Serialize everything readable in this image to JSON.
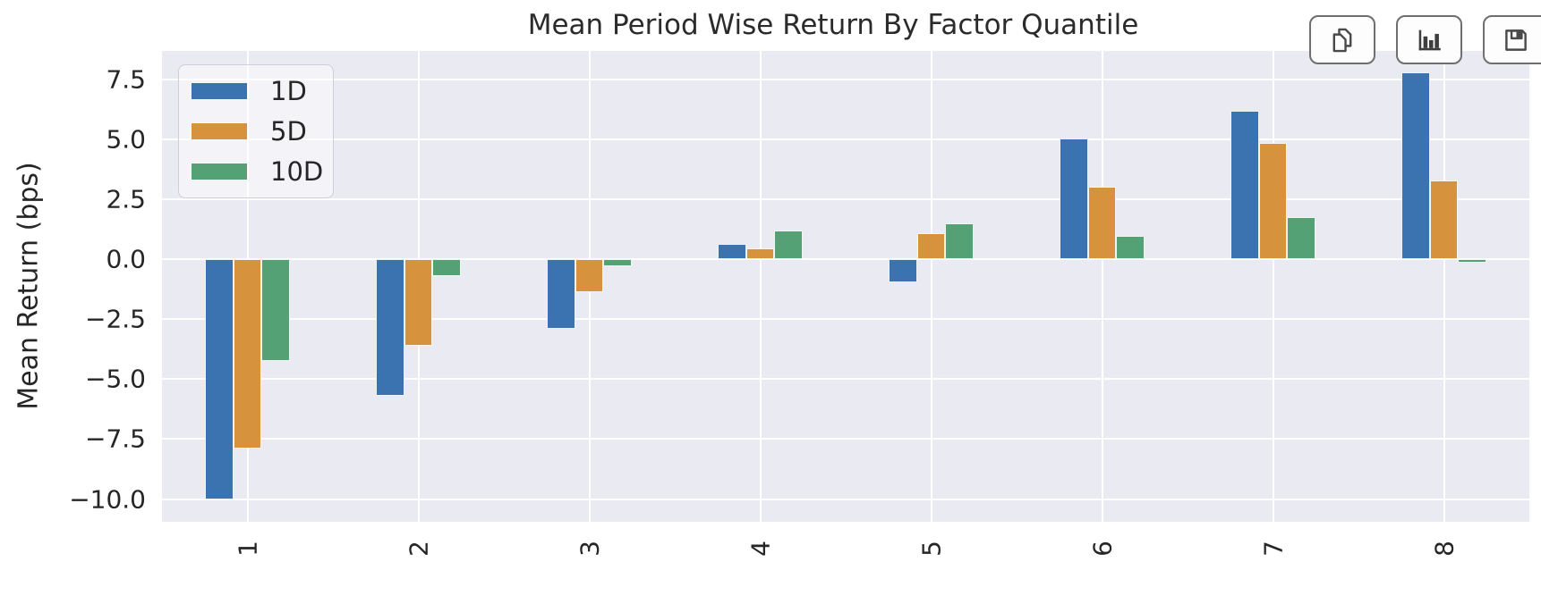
{
  "toolbar": {
    "buttons": [
      {
        "name": "copy",
        "icon": "copy-icon",
        "label": "Copy"
      },
      {
        "name": "chart",
        "icon": "bar-chart-icon",
        "label": "Chart"
      },
      {
        "name": "save",
        "icon": "save-icon",
        "label": "Save"
      }
    ]
  },
  "chart_data": {
    "type": "bar",
    "title": "Mean Period Wise Return By Factor Quantile",
    "xlabel": "",
    "ylabel": "Mean Return (bps)",
    "categories": [
      "1",
      "2",
      "3",
      "4",
      "5",
      "6",
      "7",
      "8"
    ],
    "series": [
      {
        "name": "1D",
        "color": "#3A73B0",
        "values": [
          -10.0,
          -5.7,
          -2.9,
          0.65,
          -0.95,
          5.05,
          6.2,
          7.8
        ]
      },
      {
        "name": "5D",
        "color": "#D6923C",
        "values": [
          -7.9,
          -3.6,
          -1.35,
          0.45,
          1.1,
          3.05,
          4.85,
          3.3
        ]
      },
      {
        "name": "10D",
        "color": "#54A175",
        "values": [
          -4.25,
          -0.7,
          -0.3,
          1.2,
          1.5,
          1.0,
          1.75,
          -0.15
        ]
      }
    ],
    "y_ticks": [
      7.5,
      5.0,
      2.5,
      0.0,
      -2.5,
      -5.0,
      -7.5,
      -10.0
    ],
    "y_tick_labels": [
      "7.5",
      "5.0",
      "2.5",
      "0.0",
      "−2.5",
      "−5.0",
      "−7.5",
      "−10.0"
    ],
    "ylim": [
      -10.95,
      8.7
    ],
    "x_tick_rotation": 90,
    "legend_position": "upper-left",
    "grid": true,
    "plot_bg": "#EAEAF2",
    "grid_color": "#FFFFFF"
  }
}
